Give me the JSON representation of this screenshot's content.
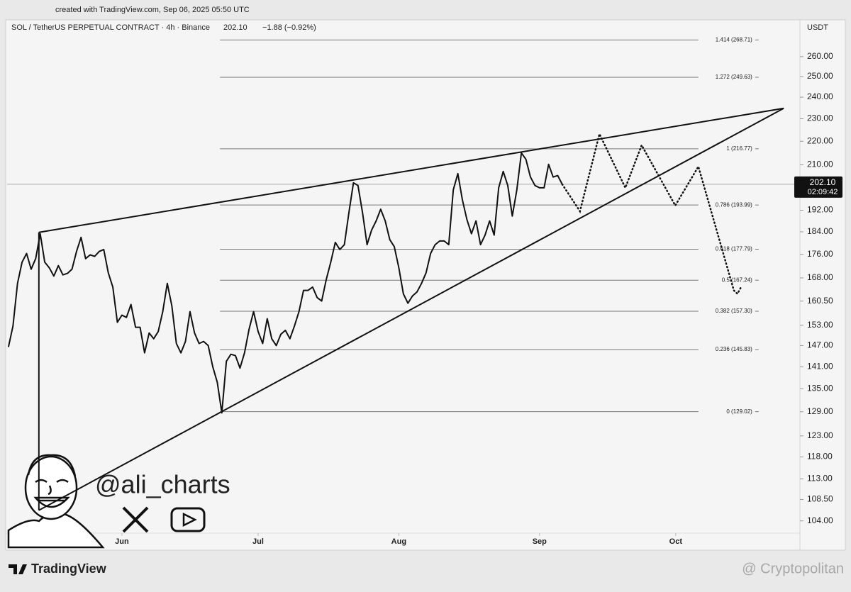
{
  "chart_data": {
    "type": "line",
    "created": "created with TradingView.com, Sep 06, 2025 05:50 UTC",
    "title": "SOL / TetherUS PERPETUAL CONTRACT · 4h · Binance",
    "header_price": "202.10",
    "header_change": "−1.88 (−0.92%)",
    "currency": "USDT",
    "author": "@ali_charts",
    "brand": "TradingView",
    "watermark": "@ Cryptopolitan",
    "color": "#111111",
    "log_scale": true,
    "xlim": [
      -25.3,
      148.9
    ],
    "ylim": [
      98.3,
      273
    ],
    "xticks": [
      {
        "value": 0,
        "label": "Jun"
      },
      {
        "value": 30,
        "label": "Jul"
      },
      {
        "value": 61,
        "label": "Aug"
      },
      {
        "value": 92,
        "label": "Sep"
      },
      {
        "value": 122,
        "label": "Oct"
      }
    ],
    "yticks": [
      {
        "value": 260,
        "label": "260.00"
      },
      {
        "value": 250,
        "label": "250.00"
      },
      {
        "value": 240,
        "label": "240.00"
      },
      {
        "value": 230,
        "label": "230.00"
      },
      {
        "value": 220,
        "label": "220.00"
      },
      {
        "value": 210,
        "label": "210.00"
      },
      {
        "value": 192,
        "label": "192.00"
      },
      {
        "value": 184,
        "label": "184.00"
      },
      {
        "value": 176,
        "label": "176.00"
      },
      {
        "value": 168,
        "label": "168.00"
      },
      {
        "value": 160.5,
        "label": "160.50"
      },
      {
        "value": 153,
        "label": "153.00"
      },
      {
        "value": 147,
        "label": "147.00"
      },
      {
        "value": 141,
        "label": "141.00"
      },
      {
        "value": 135,
        "label": "135.00"
      },
      {
        "value": 129,
        "label": "129.00"
      },
      {
        "value": 123,
        "label": "123.00"
      },
      {
        "value": 118,
        "label": "118.00"
      },
      {
        "value": 113,
        "label": "113.00"
      },
      {
        "value": 108.5,
        "label": "108.50"
      },
      {
        "value": 104,
        "label": "104.00"
      }
    ],
    "x": [
      -25,
      -24,
      -23,
      -22,
      -21,
      -20,
      -19,
      -18,
      -17,
      -16,
      -15,
      -14,
      -13,
      -12,
      -11,
      -10,
      -9,
      -8,
      -7,
      -6,
      -5,
      -4,
      -3,
      -2,
      -1,
      0,
      1,
      2,
      3,
      4,
      5,
      6,
      7,
      8,
      9,
      10,
      11,
      12,
      13,
      14,
      15,
      16,
      17,
      18,
      19,
      20,
      21,
      22,
      23,
      24,
      25,
      26,
      27,
      28,
      29,
      30,
      31,
      32,
      33,
      34,
      35,
      36,
      37,
      38,
      39,
      40,
      41,
      42,
      43,
      44,
      45,
      46,
      47,
      48,
      49,
      50,
      51,
      52,
      53,
      54,
      55,
      56,
      57,
      58,
      59,
      60,
      61,
      62,
      63,
      64,
      65,
      66,
      67,
      68,
      69,
      70,
      71,
      72,
      73,
      74,
      75,
      76,
      77,
      78,
      79,
      80,
      81,
      82,
      83,
      84,
      85,
      86,
      87,
      88,
      89,
      90,
      91,
      92,
      93,
      94,
      95,
      96,
      97
    ],
    "values": [
      146.6,
      152.8,
      166.2,
      173.3,
      176.3,
      170.9,
      174.5,
      183.3,
      173.3,
      171.4,
      168.6,
      172.1,
      169.0,
      169.5,
      170.9,
      177.0,
      182.0,
      174.5,
      175.8,
      175.3,
      177.0,
      177.7,
      169.7,
      165.0,
      153.9,
      156.1,
      155.4,
      159.4,
      152.4,
      152.4,
      144.9,
      150.7,
      149.0,
      151.1,
      157.2,
      166.2,
      159.0,
      147.6,
      144.9,
      148.2,
      157.2,
      150.7,
      147.6,
      148.2,
      147.0,
      141.0,
      136.7,
      128.7,
      142.5,
      144.5,
      144.1,
      140.6,
      144.9,
      151.8,
      157.2,
      151.1,
      147.6,
      155.0,
      149.0,
      147.0,
      150.3,
      151.5,
      149.0,
      152.8,
      157.2,
      163.9,
      163.9,
      165.0,
      161.6,
      160.5,
      167.4,
      173.3,
      180.2,
      177.7,
      179.4,
      191.1,
      202.7,
      201.6,
      191.1,
      179.4,
      184.6,
      188.0,
      192.4,
      188.0,
      181.2,
      178.7,
      171.4,
      162.8,
      159.8,
      162.1,
      163.4,
      166.2,
      169.7,
      176.3,
      179.4,
      180.7,
      180.7,
      179.4,
      199.9,
      206.4,
      196.0,
      188.5,
      183.3,
      188.0,
      179.4,
      182.8,
      188.0,
      182.8,
      200.7,
      207.3,
      201.6,
      189.8,
      199.9,
      215.0,
      212.3,
      205.0,
      201.6,
      200.7,
      200.7,
      210.2,
      205.0,
      205.6,
      202.1
    ],
    "projection": {
      "x": [
        97,
        100.9,
        105.2,
        110.9,
        114.5,
        121.9,
        127.0,
        134.8,
        135.6,
        136.4
      ],
      "values": [
        202.1,
        191.6,
        223.2,
        200.7,
        218.3,
        193.8,
        209.3,
        163.9,
        162.8,
        165.0
      ]
    },
    "trendlines": [
      {
        "x": [
          -18.3,
          145.8
        ],
        "values": [
          183.8,
          234.8
        ]
      },
      {
        "x": [
          -18.3,
          145.8
        ],
        "values": [
          106.2,
          234.8
        ]
      },
      {
        "x": [
          -18.3,
          -18.3
        ],
        "values": [
          183.8,
          106.2
        ]
      }
    ],
    "fib": {
      "x": [
        21.6,
        139.5
      ],
      "levels": [
        {
          "value": 268.71,
          "label": "1.414 (268.71)"
        },
        {
          "value": 249.63,
          "label": "1.272 (249.63)"
        },
        {
          "value": 216.77,
          "label": "1 (216.77)"
        },
        {
          "value": 193.99,
          "label": "0.786 (193.99)"
        },
        {
          "value": 177.79,
          "label": "0.618 (177.79)"
        },
        {
          "value": 167.24,
          "label": "0.5 (167.24)"
        },
        {
          "value": 157.3,
          "label": "0.382 (157.30)"
        },
        {
          "value": 145.83,
          "label": "0.236 (145.83)"
        },
        {
          "value": 129.02,
          "label": "0 (129.02)"
        }
      ]
    },
    "last_price": {
      "value": 202.1,
      "label": "202.10"
    },
    "countdown": "02:09:42"
  }
}
